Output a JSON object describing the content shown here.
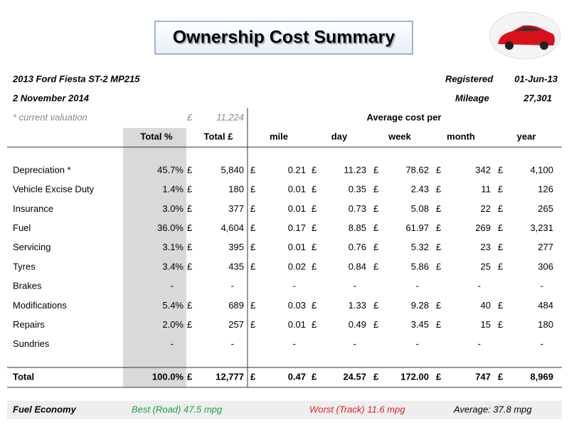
{
  "header": {
    "title": "Ownership Cost Summary",
    "vehicle": "2013 Ford Fiesta ST-2 MP215",
    "date": "2 November 2014",
    "registered_label": "Registered",
    "registered": "01-Jun-13",
    "mileage_label": "Mileage",
    "mileage": "27,301",
    "valuation_label": "* current valuation",
    "valuation": "11,224"
  },
  "currency": "£",
  "table": {
    "group_header": "Average cost per",
    "columns": [
      "Total %",
      "Total £",
      "mile",
      "day",
      "week",
      "month",
      "year"
    ],
    "rows": [
      [
        "Depreciation *",
        "45.7%",
        "5,840",
        "0.21",
        "11.23",
        "78.62",
        "342",
        "4,100"
      ],
      [
        "Vehicle Excise Duty",
        "1.4%",
        "180",
        "0.01",
        "0.35",
        "2.43",
        "11",
        "126"
      ],
      [
        "Insurance",
        "3.0%",
        "377",
        "0.01",
        "0.73",
        "5.08",
        "22",
        "265"
      ],
      [
        "Fuel",
        "36.0%",
        "4,604",
        "0.17",
        "8.85",
        "61.97",
        "269",
        "3,231"
      ],
      [
        "Servicing",
        "3.1%",
        "395",
        "0.01",
        "0.76",
        "5.32",
        "23",
        "277"
      ],
      [
        "Tyres",
        "3.4%",
        "435",
        "0.02",
        "0.84",
        "5.86",
        "25",
        "306"
      ],
      [
        "Brakes",
        "-",
        "-",
        "-",
        "-",
        "-",
        "-",
        "-"
      ],
      [
        "Modifications",
        "5.4%",
        "689",
        "0.03",
        "1.33",
        "9.28",
        "40",
        "484"
      ],
      [
        "Repairs",
        "2.0%",
        "257",
        "0.01",
        "0.49",
        "3.45",
        "15",
        "180"
      ],
      [
        "Sundries",
        "-",
        "-",
        "-",
        "-",
        "-",
        "-",
        "-"
      ]
    ],
    "total": [
      "Total",
      "100.0%",
      "12,777",
      "0.47",
      "24.57",
      "172.00",
      "747",
      "8,969"
    ]
  },
  "footer": {
    "label": "Fuel Economy",
    "best": "Best (Road)  47.5 mpg",
    "worst": "Worst (Track)  11.6 mpg",
    "average": "Average:  37.8 mpg"
  }
}
